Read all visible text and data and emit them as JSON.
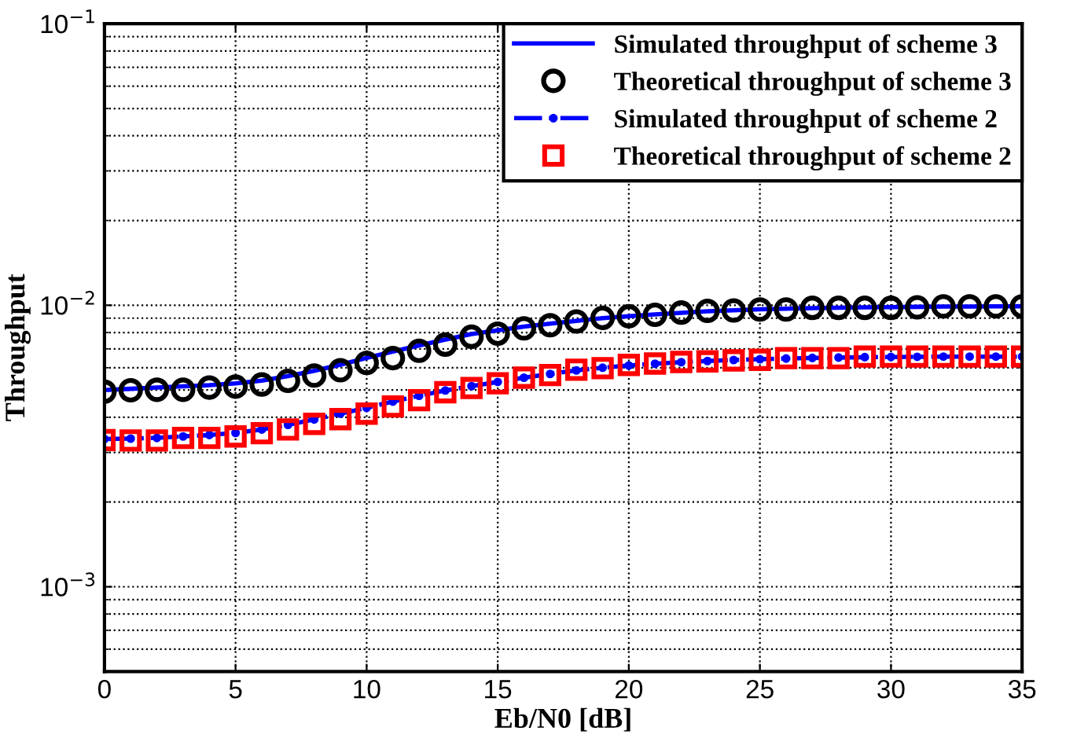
{
  "chart_data": {
    "type": "line",
    "xlabel": "Eb/N0 [dB]",
    "ylabel": "Throughput",
    "x": [
      0,
      1,
      2,
      3,
      4,
      5,
      6,
      7,
      8,
      9,
      10,
      11,
      12,
      13,
      14,
      15,
      16,
      17,
      18,
      19,
      20,
      21,
      22,
      23,
      24,
      25,
      26,
      27,
      28,
      29,
      30,
      31,
      32,
      33,
      34,
      35
    ],
    "series": [
      {
        "name": "Simulated throughput of scheme 3",
        "color": "#0000ff",
        "line_style": "solid",
        "marker": "none",
        "values": [
          0.005,
          0.00505,
          0.0051,
          0.00515,
          0.0052,
          0.00528,
          0.0054,
          0.0056,
          0.00585,
          0.00615,
          0.0065,
          0.00685,
          0.0072,
          0.00755,
          0.0079,
          0.00815,
          0.0084,
          0.0086,
          0.0088,
          0.009,
          0.00915,
          0.00928,
          0.0094,
          0.00952,
          0.0096,
          0.00967,
          0.00972,
          0.00977,
          0.0098,
          0.00983,
          0.00985,
          0.00987,
          0.00989,
          0.0099,
          0.00991,
          0.00992
        ]
      },
      {
        "name": "Theoretical throughput of scheme 3",
        "type": "scatter",
        "color": "#000000",
        "marker": "circle",
        "values": [
          0.00493,
          0.00499,
          0.00501,
          0.00501,
          0.0051,
          0.00514,
          0.00523,
          0.00539,
          0.00563,
          0.00588,
          0.00624,
          0.00649,
          0.00689,
          0.00725,
          0.00773,
          0.00793,
          0.00828,
          0.00849,
          0.00876,
          0.00902,
          0.00914,
          0.00925,
          0.00942,
          0.00955,
          0.00958,
          0.00966,
          0.00966,
          0.00979,
          0.00979,
          0.00979,
          0.00979,
          0.00983,
          0.00991,
          0.00991,
          0.00991,
          0.00991
        ]
      },
      {
        "name": "Simulated throughput of scheme 2",
        "color": "#0000ff",
        "line_style": "dashdot",
        "marker": "circle",
        "values": [
          0.00335,
          0.00336,
          0.00338,
          0.00342,
          0.00346,
          0.00352,
          0.00362,
          0.00376,
          0.00393,
          0.00412,
          0.00432,
          0.00455,
          0.00477,
          0.00498,
          0.00516,
          0.00534,
          0.00553,
          0.0057,
          0.00587,
          0.006,
          0.00611,
          0.0062,
          0.00628,
          0.00634,
          0.00639,
          0.00643,
          0.00647,
          0.0065,
          0.00652,
          0.00654,
          0.00655,
          0.00656,
          0.00657,
          0.00657,
          0.00657,
          0.00657
        ]
      },
      {
        "name": "Theoretical throughput of scheme 2",
        "type": "scatter",
        "color": "#ff0000",
        "marker": "square",
        "values": [
          0.00332,
          0.00331,
          0.00331,
          0.00338,
          0.00338,
          0.00342,
          0.00351,
          0.00362,
          0.00379,
          0.00394,
          0.00412,
          0.00437,
          0.0046,
          0.00491,
          0.00508,
          0.00528,
          0.00553,
          0.00565,
          0.0059,
          0.00598,
          0.00614,
          0.00621,
          0.00629,
          0.00632,
          0.00637,
          0.0064,
          0.00649,
          0.00649,
          0.00649,
          0.00657,
          0.00657,
          0.00657,
          0.00657,
          0.00657,
          0.00657,
          0.00657
        ]
      }
    ],
    "log": "y",
    "xlim": [
      0,
      35
    ],
    "xticks": [
      0,
      5,
      10,
      15,
      20,
      25,
      30,
      35
    ],
    "ylim": [
      0.0005,
      0.1
    ],
    "yticks": [
      {
        "value": 0.001,
        "label": "10$^{−3}$"
      },
      {
        "value": 0.01,
        "label": "10$^{−2}$"
      },
      {
        "value": 0.1,
        "label": "10$^{−1}$"
      }
    ],
    "grid": true,
    "legend": "top right"
  }
}
